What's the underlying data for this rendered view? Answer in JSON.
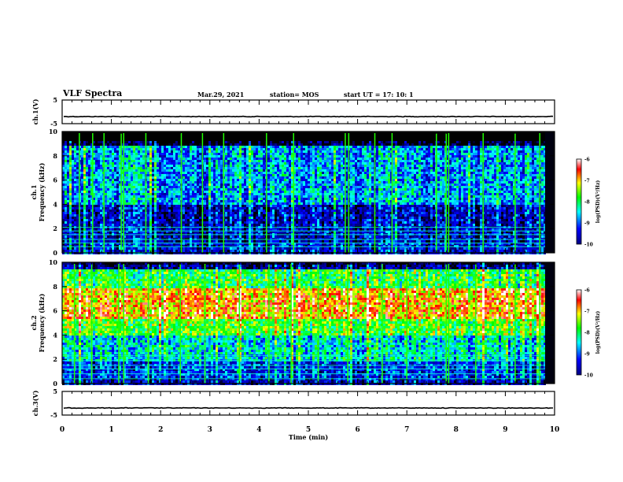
{
  "header": {
    "title": "VLF Spectra",
    "date": "Mar.29, 2021",
    "station": "station= MOS",
    "start_ut": "start  UT =   17: 10: 1"
  },
  "chart_data": [
    {
      "type": "line",
      "name": "ch1-voltage",
      "ylabel": "ch.1(V)",
      "ylim": [
        -5,
        5
      ],
      "yticks": [
        "5",
        "-5"
      ],
      "xlim": [
        0,
        10
      ],
      "series_level": -2
    },
    {
      "type": "heatmap",
      "name": "ch1-spectrogram",
      "ylabel": "ch.1\nFrequency (kHz)",
      "ylabel_line1": "ch.1",
      "ylabel_line2": "Frequency (kHz)",
      "ylim": [
        0,
        10
      ],
      "yticks": [
        "0",
        "2",
        "4",
        "6",
        "8",
        "10"
      ],
      "xlim": [
        0,
        10
      ],
      "colorbar": {
        "label": "log(PSD)(V²/Hz)",
        "range": [
          -10,
          -6
        ],
        "ticks": [
          "-6",
          "-7",
          "-8",
          "-9",
          "-10"
        ]
      },
      "background_level": -9.6,
      "band_levels_khz": [
        [
          0,
          1,
          -9.2
        ],
        [
          1,
          4,
          -9.3
        ],
        [
          4,
          9,
          -8.6
        ],
        [
          9,
          10,
          -10
        ]
      ],
      "spike_times_min": [
        0.35,
        0.62,
        0.85,
        1.2,
        1.25,
        1.7,
        2.42,
        2.85,
        3.28,
        4.15,
        4.7,
        5.75,
        5.82,
        6.35,
        6.7,
        7.6,
        7.8,
        7.85,
        8.55,
        9.2,
        9.7
      ],
      "tone_lines_khz": [
        0.5,
        0.8,
        1.1,
        1.5,
        1.8,
        2.1
      ]
    },
    {
      "type": "heatmap",
      "name": "ch2-spectrogram",
      "ylabel_line1": "ch.2",
      "ylabel_line2": "Frequency (kHz)",
      "ylim": [
        0,
        10
      ],
      "yticks": [
        "0",
        "2",
        "4",
        "6",
        "8",
        "10"
      ],
      "xlim": [
        0,
        10
      ],
      "colorbar": {
        "label": "log(PSD)(V²/Hz)",
        "range": [
          -10,
          -6
        ],
        "ticks": [
          "-6",
          "-7",
          "-8",
          "-9",
          "-10"
        ]
      },
      "band_levels_khz": [
        [
          0,
          0.5,
          -9.3
        ],
        [
          0.5,
          2,
          -9.0
        ],
        [
          2,
          4,
          -8.3
        ],
        [
          4,
          5.5,
          -7.6
        ],
        [
          5.5,
          8,
          -6.8
        ],
        [
          8,
          9.5,
          -7.8
        ],
        [
          9.5,
          10,
          -9.5
        ]
      ],
      "spike_times_min": [
        0.25,
        0.6,
        1.15,
        1.25,
        1.75,
        2.4,
        2.9,
        3.6,
        4.2,
        4.65,
        5.2,
        5.8,
        6.5,
        7.0,
        7.8,
        7.85,
        8.4,
        9.2,
        9.7
      ],
      "tone_lines_khz": [
        0.4,
        0.8,
        1.2,
        1.5,
        1.9,
        2.3
      ]
    },
    {
      "type": "line",
      "name": "ch3-voltage",
      "ylabel": "ch.3(V)",
      "ylim": [
        -5,
        5
      ],
      "yticks": [
        "5",
        "-5"
      ],
      "xlim": [
        0,
        10
      ],
      "xticks": [
        "0",
        "1",
        "2",
        "3",
        "4",
        "5",
        "6",
        "7",
        "8",
        "9",
        "10"
      ],
      "xlabel": "Time  (min)",
      "series_level": -2
    }
  ]
}
